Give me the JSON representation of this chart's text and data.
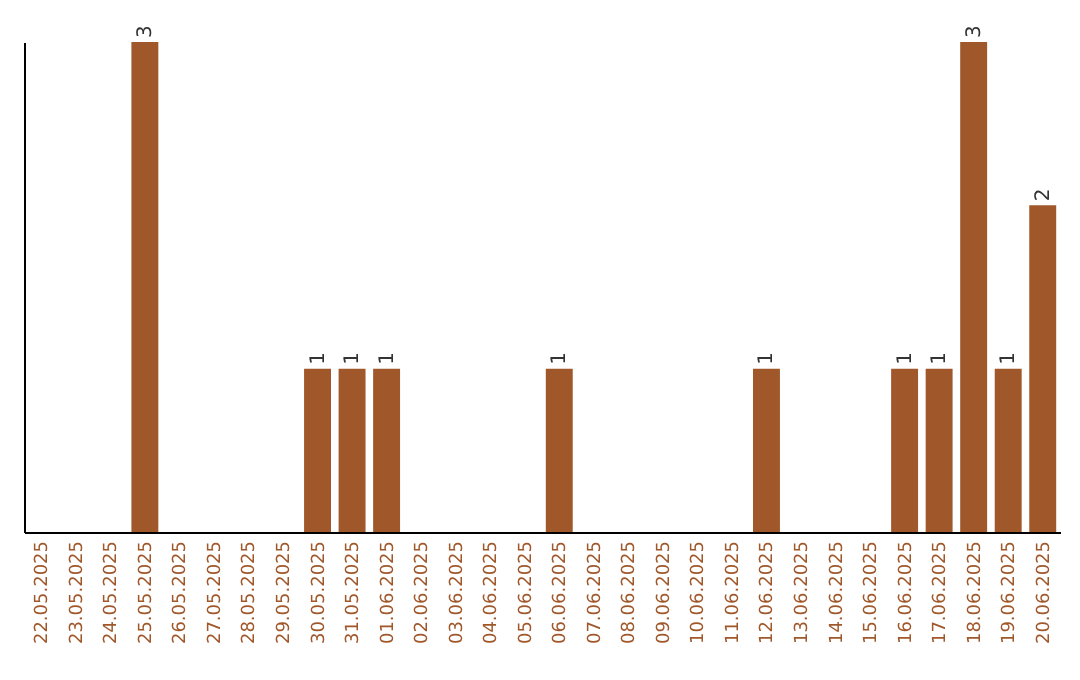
{
  "chart_data": {
    "type": "bar",
    "categories": [
      "22.05.2025",
      "23.05.2025",
      "24.05.2025",
      "25.05.2025",
      "26.05.2025",
      "27.05.2025",
      "28.05.2025",
      "29.05.2025",
      "30.05.2025",
      "31.05.2025",
      "01.06.2025",
      "02.06.2025",
      "03.06.2025",
      "04.06.2025",
      "05.06.2025",
      "06.06.2025",
      "07.06.2025",
      "08.06.2025",
      "09.06.2025",
      "10.06.2025",
      "11.06.2025",
      "12.06.2025",
      "13.06.2025",
      "14.06.2025",
      "15.06.2025",
      "16.06.2025",
      "17.06.2025",
      "18.06.2025",
      "19.06.2025",
      "20.06.2025"
    ],
    "values": [
      0,
      0,
      0,
      3,
      0,
      0,
      0,
      0,
      1,
      1,
      1,
      0,
      0,
      0,
      0,
      1,
      0,
      0,
      0,
      0,
      0,
      1,
      0,
      0,
      0,
      1,
      1,
      3,
      1,
      2
    ],
    "value_labels": [
      null,
      null,
      null,
      "3",
      null,
      null,
      null,
      null,
      "1",
      "1",
      "1",
      null,
      null,
      null,
      null,
      "1",
      null,
      null,
      null,
      null,
      null,
      "1",
      null,
      null,
      null,
      "1",
      "1",
      "3",
      "1",
      "2"
    ],
    "color": "#a0582b",
    "tick_labels": "x"
  }
}
